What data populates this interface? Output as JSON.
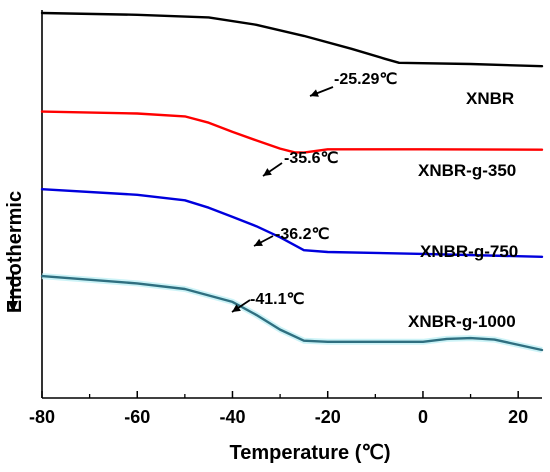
{
  "chart_data": {
    "type": "line",
    "xlabel": "Temperature (℃)",
    "ylabel": "Endothermic",
    "xlim": [
      -80,
      25
    ],
    "xticks": [
      "-80",
      "-60",
      "-40",
      "-20",
      "0",
      "20"
    ],
    "grid": false,
    "series": [
      {
        "name": "XNBR",
        "color": "#000000",
        "tg_label": "-25.29℃",
        "x": [
          -80,
          -60,
          -45,
          -35,
          -25,
          -15,
          -8,
          -5,
          10,
          25
        ],
        "y": [
          -0.8,
          -1.3,
          -2.0,
          -4.0,
          -7.0,
          -10.5,
          -13.2,
          -14.3,
          -14.6,
          -15.2
        ]
      },
      {
        "name": "XNBR-g-350",
        "color": "#ff0000",
        "tg_label": "-35.6℃",
        "x": [
          -80,
          -60,
          -50,
          -45,
          -40,
          -35,
          -30,
          -27,
          -25,
          -20,
          0,
          25
        ],
        "y": [
          -27.5,
          -28.0,
          -28.8,
          -30.5,
          -33.0,
          -35.3,
          -37.5,
          -38.5,
          -38.6,
          -37.7,
          -37.7,
          -37.8
        ]
      },
      {
        "name": "XNBR-g-750",
        "color": "#0000dd",
        "tg_label": "-36.2℃",
        "x": [
          -80,
          -60,
          -50,
          -45,
          -40,
          -35,
          -30,
          -25,
          -20,
          0,
          25
        ],
        "y": [
          -48.5,
          -50.0,
          -51.5,
          -53.5,
          -56.0,
          -58.5,
          -61.5,
          -65.0,
          -65.5,
          -66.0,
          -66.8
        ]
      },
      {
        "name": "XNBR-g-1000",
        "color": "#2f6f80",
        "tg_label": "-41.1℃",
        "x": [
          -80,
          -60,
          -50,
          -40,
          -35,
          -30,
          -25,
          -20,
          0,
          5,
          10,
          15,
          25
        ],
        "y": [
          -72.0,
          -74.0,
          -75.5,
          -79.0,
          -82.5,
          -86.5,
          -89.5,
          -89.8,
          -89.8,
          -89.0,
          -88.8,
          -89.2,
          -92.0
        ]
      }
    ]
  }
}
